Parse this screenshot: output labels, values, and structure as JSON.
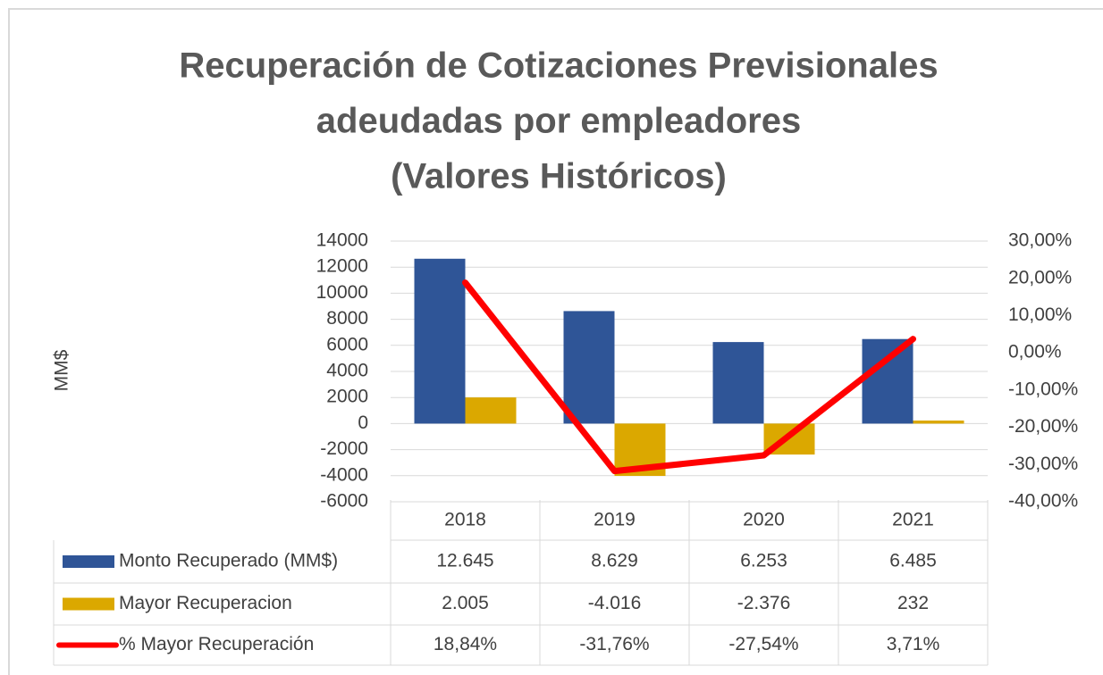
{
  "chart_data": {
    "type": "bar",
    "title": [
      "Recuperación  de Cotizaciones Previsionales",
      "adeudadas por empleadores",
      "(Valores Históricos)"
    ],
    "y_label": "MM$",
    "categories": [
      "2018",
      "2019",
      "2020",
      "2021"
    ],
    "series": [
      {
        "name": "Monto Recuperado (MM$)",
        "type": "bar",
        "color": "#2f5597",
        "values": [
          12645,
          8629,
          6253,
          6485
        ],
        "value_labels": [
          "12.645",
          "8.629",
          "6.253",
          "6.485"
        ]
      },
      {
        "name": "Mayor Recuperacion",
        "type": "bar",
        "color": "#dba800",
        "values": [
          2005,
          -4016,
          -2376,
          232
        ],
        "value_labels": [
          "2.005",
          "-4.016",
          "-2.376",
          "232"
        ]
      },
      {
        "name": "% Mayor Recuperación",
        "type": "line",
        "axis": "y2",
        "color": "#ff0000",
        "values": [
          18.84,
          -31.76,
          -27.54,
          3.71
        ],
        "value_labels": [
          "18,84%",
          "-31,76%",
          "-27,54%",
          "3,71%"
        ]
      }
    ],
    "ylim": [
      -6000,
      14000
    ],
    "yticks": [
      -6000,
      -4000,
      -2000,
      0,
      2000,
      4000,
      6000,
      8000,
      10000,
      12000,
      14000
    ],
    "y2lim": [
      -40,
      30
    ],
    "y2ticks": [
      {
        "value": -40,
        "label": "-40,00%"
      },
      {
        "value": -30,
        "label": "-30,00%"
      },
      {
        "value": -20,
        "label": "-20,00%"
      },
      {
        "value": -10,
        "label": "-10,00%"
      },
      {
        "value": 0,
        "label": "0,00%"
      },
      {
        "value": 10,
        "label": "10,00%"
      },
      {
        "value": 20,
        "label": "20,00%"
      },
      {
        "value": 30,
        "label": "30,00%"
      }
    ],
    "grid": true
  }
}
